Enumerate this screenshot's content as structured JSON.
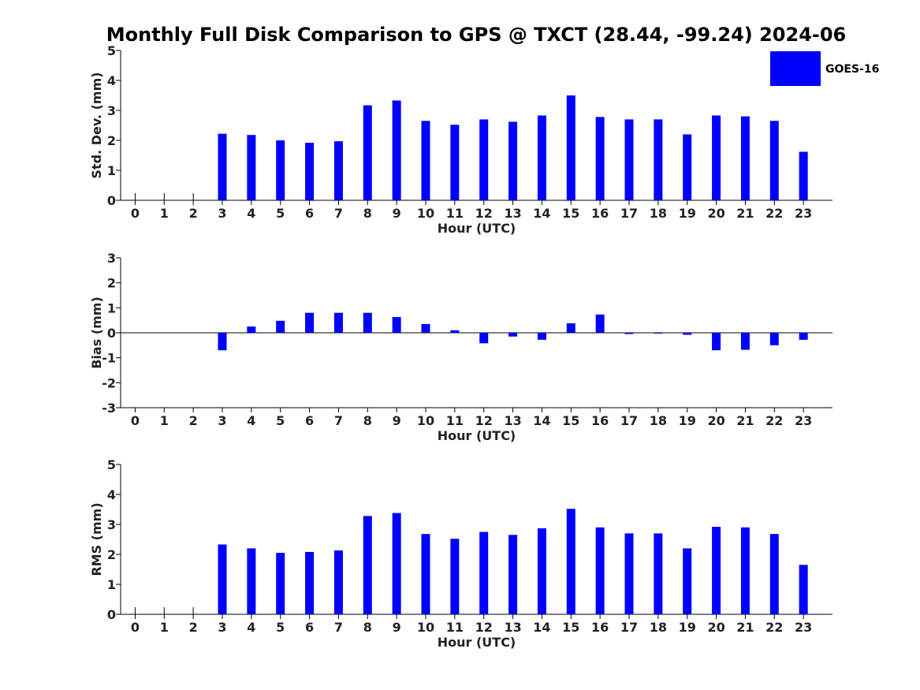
{
  "title": "Monthly Full Disk Comparison to GPS @ TXCT (28.44, -99.24) 2024-06",
  "legend": {
    "label": "GOES-16",
    "color": "#0000ff",
    "placement": "top-right"
  },
  "chart_data": [
    {
      "type": "bar",
      "name": "std_dev",
      "xlabel": "Hour (UTC)",
      "ylabel": "Std. Dev. (mm)",
      "ylim": [
        0,
        5
      ],
      "yticks": [
        0,
        1,
        2,
        3,
        4,
        5
      ],
      "categories": [
        "0",
        "1",
        "2",
        "3",
        "4",
        "5",
        "6",
        "7",
        "8",
        "9",
        "10",
        "11",
        "12",
        "13",
        "14",
        "15",
        "16",
        "17",
        "18",
        "19",
        "20",
        "21",
        "22",
        "23"
      ],
      "series": [
        {
          "name": "GOES-16",
          "color": "#0000ff",
          "values": [
            null,
            null,
            null,
            2.22,
            2.18,
            2.0,
            1.92,
            1.97,
            3.17,
            3.33,
            2.65,
            2.52,
            2.7,
            2.62,
            2.83,
            3.5,
            2.78,
            2.7,
            2.7,
            2.2,
            2.83,
            2.8,
            2.65,
            1.62
          ]
        }
      ]
    },
    {
      "type": "bar",
      "name": "bias",
      "xlabel": "Hour (UTC)",
      "ylabel": "Bias (mm)",
      "ylim": [
        -3,
        3
      ],
      "yticks": [
        -3,
        -2,
        -1,
        0,
        1,
        2,
        3
      ],
      "categories": [
        "0",
        "1",
        "2",
        "3",
        "4",
        "5",
        "6",
        "7",
        "8",
        "9",
        "10",
        "11",
        "12",
        "13",
        "14",
        "15",
        "16",
        "17",
        "18",
        "19",
        "20",
        "21",
        "22",
        "23"
      ],
      "series": [
        {
          "name": "GOES-16",
          "color": "#0000ff",
          "values": [
            null,
            null,
            null,
            -0.7,
            0.25,
            0.48,
            0.8,
            0.8,
            0.8,
            0.63,
            0.35,
            0.1,
            -0.42,
            -0.15,
            -0.28,
            0.38,
            0.73,
            -0.05,
            0.0,
            -0.08,
            -0.7,
            -0.68,
            -0.5,
            -0.28
          ]
        }
      ]
    },
    {
      "type": "bar",
      "name": "rms",
      "xlabel": "Hour (UTC)",
      "ylabel": "RMS (mm)",
      "ylim": [
        0,
        5
      ],
      "yticks": [
        0,
        1,
        2,
        3,
        4,
        5
      ],
      "categories": [
        "0",
        "1",
        "2",
        "3",
        "4",
        "5",
        "6",
        "7",
        "8",
        "9",
        "10",
        "11",
        "12",
        "13",
        "14",
        "15",
        "16",
        "17",
        "18",
        "19",
        "20",
        "21",
        "22",
        "23"
      ],
      "series": [
        {
          "name": "GOES-16",
          "color": "#0000ff",
          "values": [
            null,
            null,
            null,
            2.33,
            2.2,
            2.05,
            2.08,
            2.13,
            3.28,
            3.38,
            2.68,
            2.52,
            2.75,
            2.65,
            2.87,
            3.52,
            2.9,
            2.7,
            2.7,
            2.2,
            2.92,
            2.9,
            2.68,
            1.65
          ]
        }
      ]
    }
  ]
}
